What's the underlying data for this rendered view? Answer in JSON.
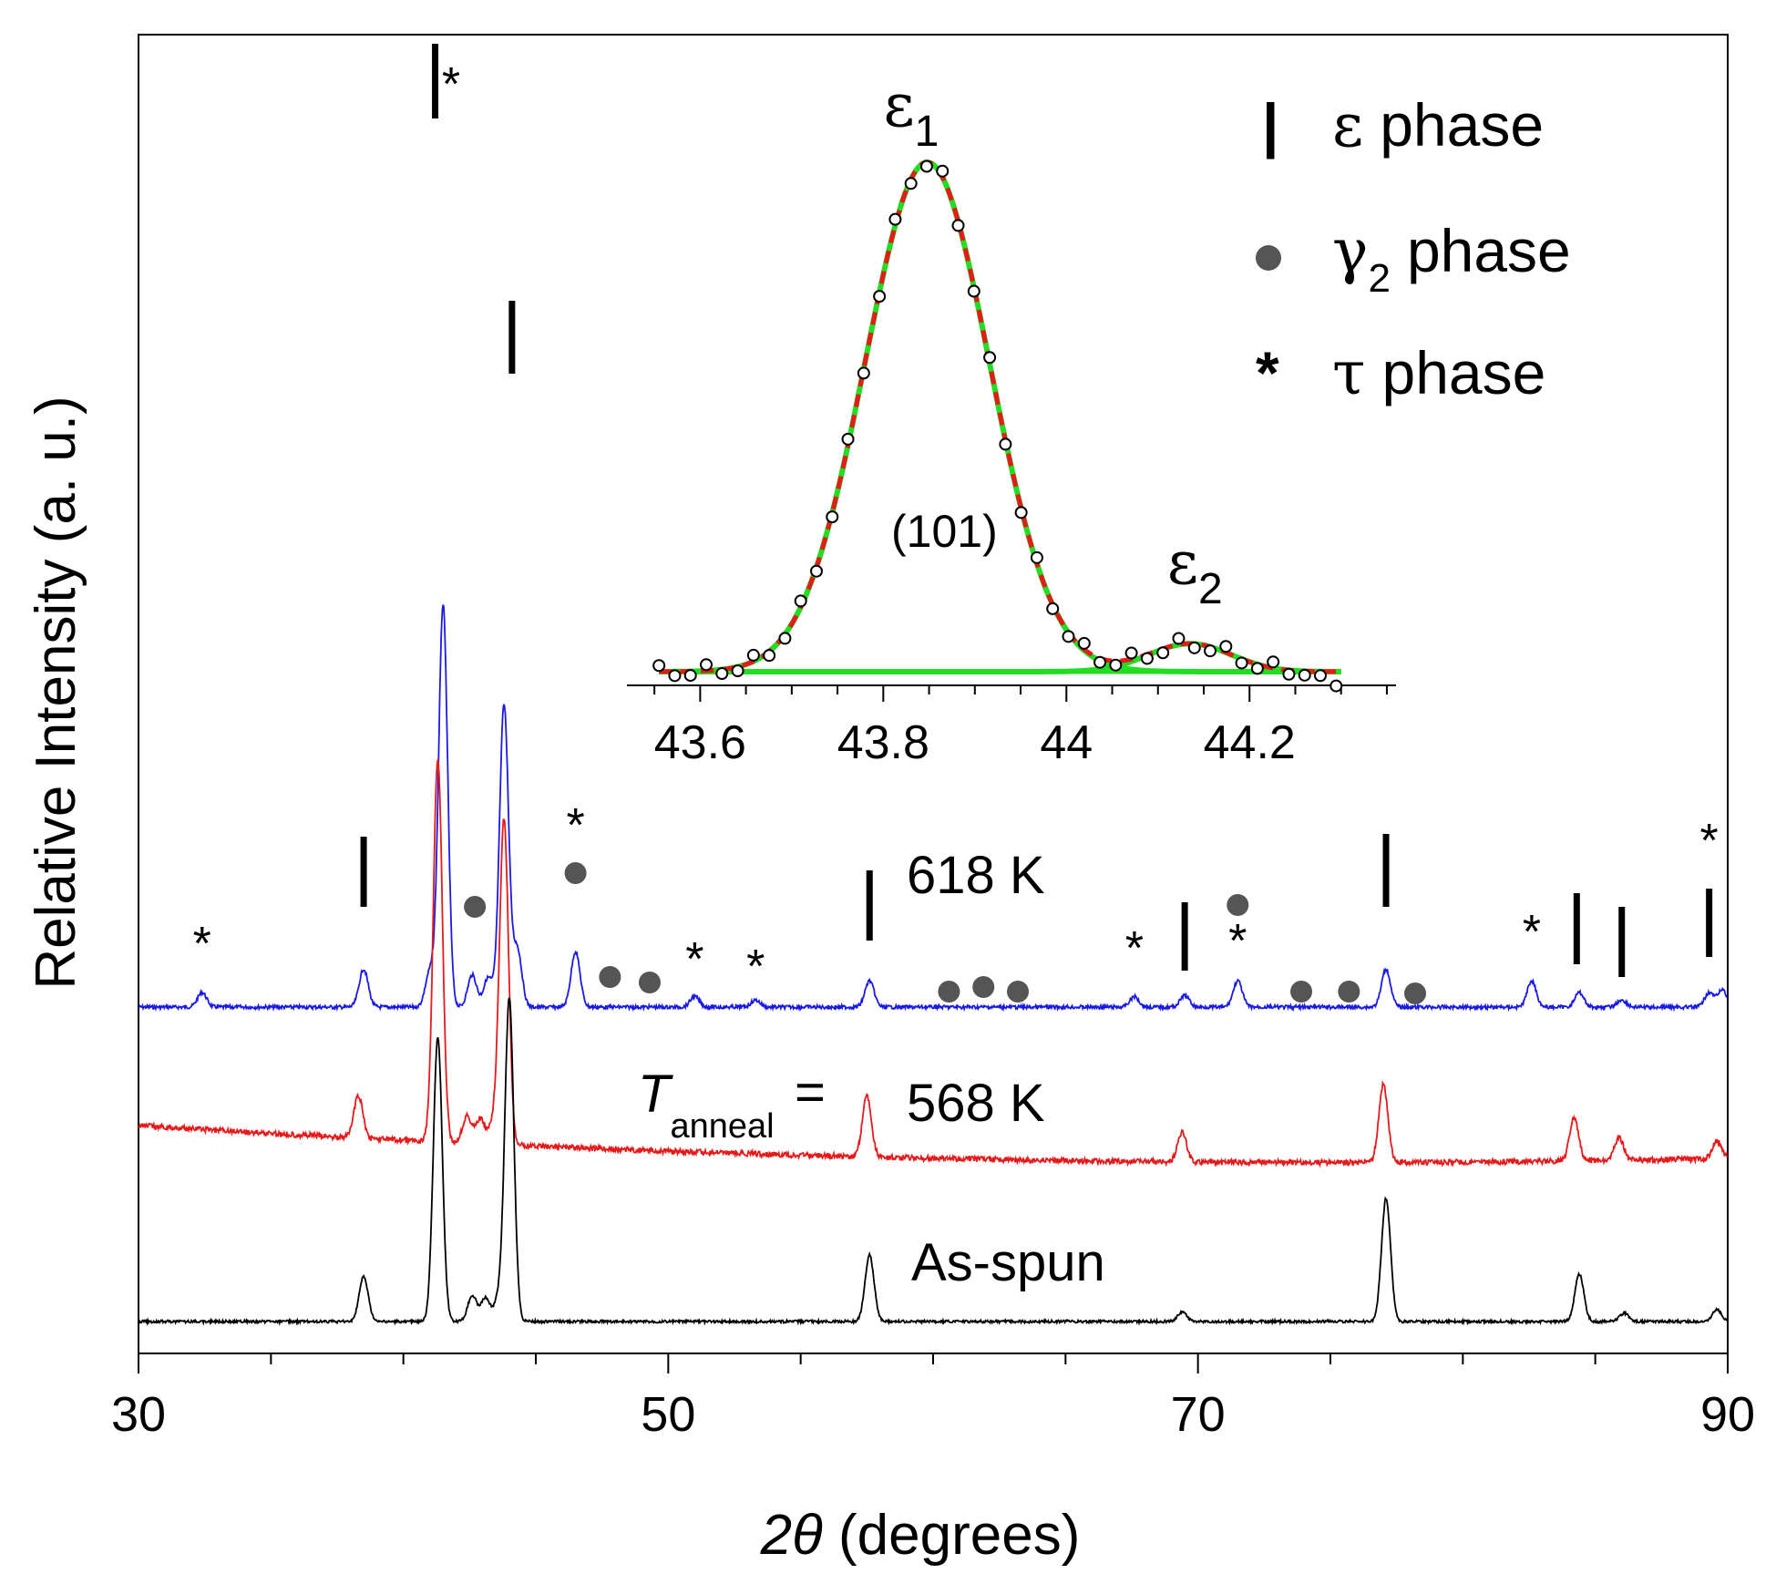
{
  "chart_data": {
    "type": "line",
    "xlabel": "2θ (degrees)",
    "ylabel": "Relative Intensity (a. u.)",
    "xlim": [
      30,
      90
    ],
    "x_ticks": [
      "30",
      "50",
      "70",
      "90"
    ],
    "series": [
      {
        "name": "618 K",
        "color": "#1a1ae6",
        "baseline": 0.0,
        "peaks": [
          [
            32.4,
            0.25
          ],
          [
            38.5,
            0.65
          ],
          [
            41.0,
            0.6
          ],
          [
            41.5,
            6.9
          ],
          [
            42.6,
            0.55
          ],
          [
            43.2,
            0.5
          ],
          [
            43.8,
            5.2
          ],
          [
            44.3,
            1.0
          ],
          [
            46.5,
            0.95
          ],
          [
            51.0,
            0.18
          ],
          [
            53.3,
            0.12
          ],
          [
            57.6,
            0.45
          ],
          [
            67.6,
            0.18
          ],
          [
            69.5,
            0.2
          ],
          [
            71.5,
            0.45
          ],
          [
            77.1,
            0.65
          ],
          [
            82.6,
            0.45
          ],
          [
            84.4,
            0.25
          ],
          [
            86.0,
            0.12
          ],
          [
            89.3,
            0.25
          ],
          [
            89.8,
            0.3
          ]
        ]
      },
      {
        "name": "568 K",
        "color": "#e61a1a",
        "peaks": [
          [
            38.3,
            0.85
          ],
          [
            41.3,
            7.8
          ],
          [
            42.4,
            0.55
          ],
          [
            42.9,
            0.5
          ],
          [
            43.4,
            0.4
          ],
          [
            43.8,
            6.6
          ],
          [
            57.5,
            1.25
          ],
          [
            69.4,
            0.6
          ],
          [
            77.0,
            1.6
          ],
          [
            84.2,
            0.9
          ],
          [
            85.9,
            0.45
          ],
          [
            89.6,
            0.35
          ]
        ]
      },
      {
        "name": "As-spun",
        "color": "#000000",
        "peaks": [
          [
            38.5,
            0.95
          ],
          [
            41.3,
            6.0
          ],
          [
            42.6,
            0.55
          ],
          [
            43.1,
            0.5
          ],
          [
            43.6,
            0.45
          ],
          [
            44.0,
            6.8
          ],
          [
            57.6,
            1.4
          ],
          [
            69.4,
            0.2
          ],
          [
            77.1,
            2.6
          ],
          [
            84.4,
            1.0
          ],
          [
            86.1,
            0.18
          ],
          [
            89.6,
            0.25
          ]
        ]
      }
    ],
    "inset": {
      "xlim": [
        43.52,
        44.36
      ],
      "x_ticks": [
        "43.6",
        "43.8",
        "44",
        "44.2"
      ],
      "peaks": [
        {
          "label": "ε",
          "sub": "1",
          "center": 43.848,
          "amplitude": 1.0,
          "sigma": 0.068
        },
        {
          "label": "ε",
          "sub": "2",
          "center": 44.135,
          "amplitude": 0.055,
          "sigma": 0.045
        }
      ],
      "miller": "(101)",
      "line_colors": {
        "fit": "#e61a1a",
        "components": "#22dd22",
        "points": "#ffffff"
      }
    },
    "annotations": {
      "temp_618": "618 K",
      "temp_568": "568 K",
      "t_anneal_symbol": "T",
      "t_anneal_sub": "anneal",
      "equals": "=",
      "as_spun": "As-spun",
      "star": "*",
      "bar": "|",
      "star_positions": [
        32.4,
        41.8,
        46.5,
        51.0,
        53.3,
        67.6,
        71.5,
        82.6,
        89.3
      ],
      "bar_positions": [
        38.5,
        41.2,
        44.1,
        57.6,
        69.5,
        77.1,
        84.3,
        86.0,
        89.3
      ],
      "dot_positions": [
        42.7,
        46.5,
        47.8,
        49.3,
        60.6,
        61.9,
        63.2,
        71.5,
        73.9,
        75.7,
        78.2
      ]
    },
    "legend": {
      "position": "top-right",
      "entries": [
        {
          "symbol": "|",
          "greek": "ε",
          "sub": "",
          "text": "phase"
        },
        {
          "symbol": "●",
          "greek": "γ",
          "sub": "2",
          "text": "phase"
        },
        {
          "symbol": "*",
          "greek": "τ",
          "sub": "",
          "text": "phase"
        }
      ],
      "dot_color": "#555555"
    }
  }
}
